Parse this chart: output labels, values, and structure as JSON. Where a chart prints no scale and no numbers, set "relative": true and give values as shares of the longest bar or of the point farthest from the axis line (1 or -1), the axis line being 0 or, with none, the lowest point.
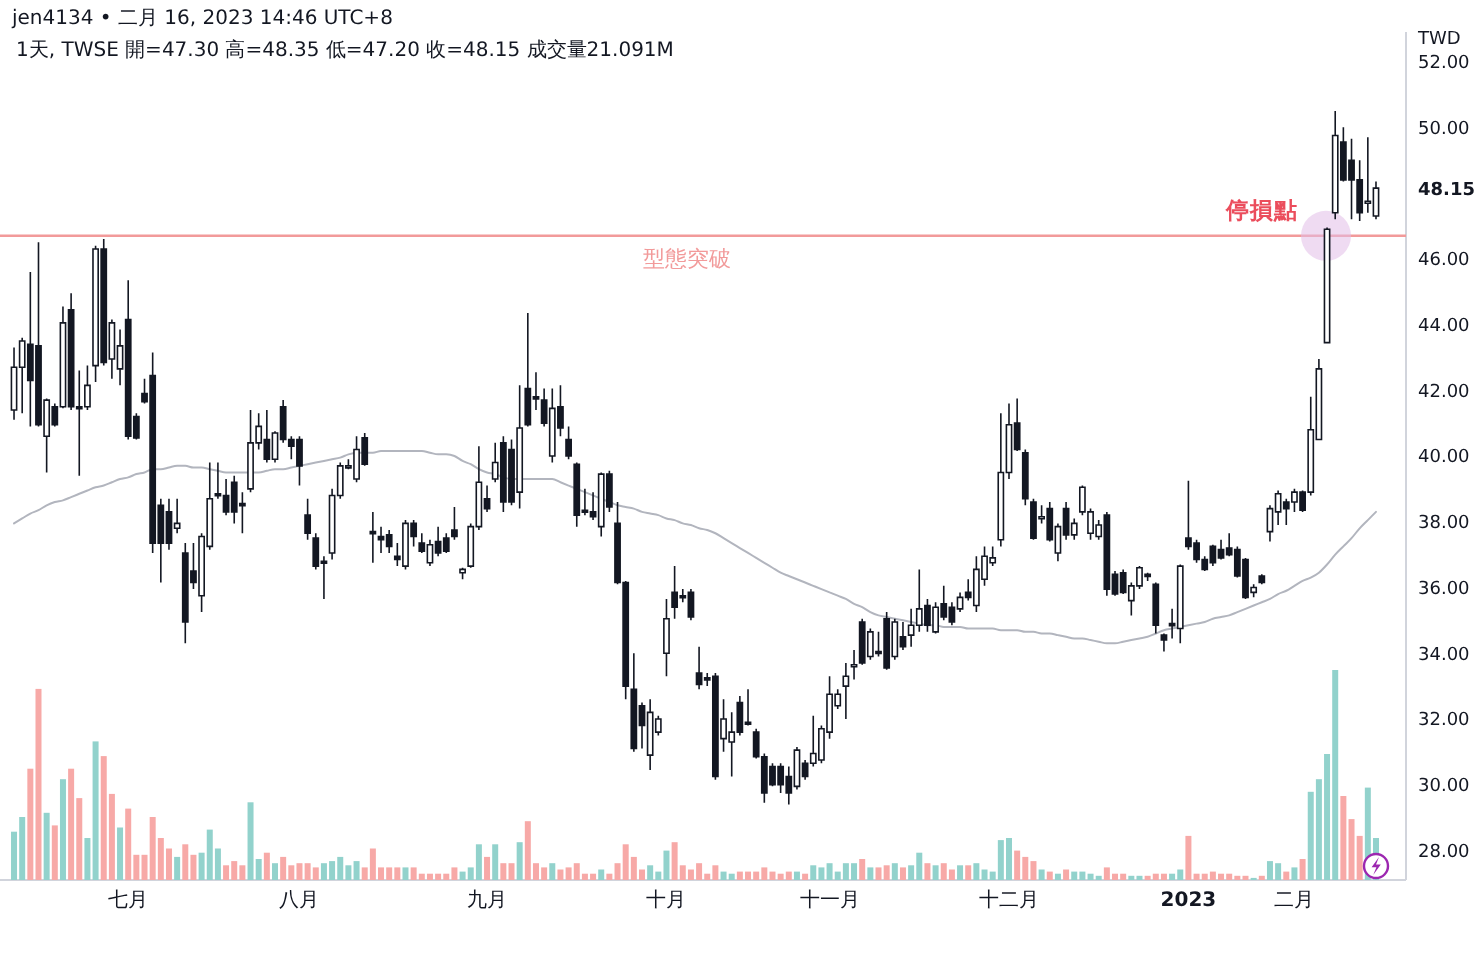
{
  "chart_data": [
    {
      "type": "candlestick",
      "title": "jen4134 • 二月 16, 2023 14:46 UTC+8",
      "subtitle": "1天, TWSE 開=47.30 高=48.35 低=47.20 收=48.15 成交量21.091M",
      "ylabel": "TWD",
      "categories": [
        null,
        null,
        null,
        null,
        null,
        null,
        null,
        null,
        null,
        null,
        null,
        null,
        null,
        null,
        "七月",
        null,
        null,
        null,
        null,
        null,
        null,
        null,
        null,
        null,
        null,
        null,
        null,
        null,
        null,
        null,
        null,
        null,
        null,
        null,
        null,
        "八月",
        null,
        null,
        null,
        null,
        null,
        null,
        null,
        null,
        null,
        null,
        null,
        null,
        null,
        null,
        null,
        null,
        null,
        null,
        null,
        null,
        null,
        null,
        "九月",
        null,
        null,
        null,
        null,
        null,
        null,
        null,
        null,
        null,
        null,
        null,
        null,
        null,
        null,
        null,
        null,
        null,
        null,
        null,
        null,
        null,
        "十月",
        null,
        null,
        null,
        null,
        null,
        null,
        null,
        null,
        null,
        null,
        null,
        null,
        null,
        null,
        null,
        null,
        null,
        null,
        null,
        "十一月",
        null,
        null,
        null,
        null,
        null,
        null,
        null,
        null,
        null,
        null,
        null,
        null,
        null,
        null,
        null,
        null,
        null,
        null,
        null,
        null,
        null,
        "十二月",
        null,
        null,
        null,
        null,
        null,
        null,
        null,
        null,
        null,
        null,
        null,
        null,
        null,
        null,
        null,
        null,
        null,
        null,
        null,
        null,
        null,
        "2023",
        null,
        null,
        null,
        null,
        null,
        null,
        null,
        null,
        null,
        null,
        null,
        null,
        "二月",
        null,
        null,
        null,
        null,
        null,
        null,
        null,
        null,
        null,
        null
      ],
      "ohlc": [
        [
          41.4,
          43.3,
          41.1,
          42.7
        ],
        [
          42.7,
          43.6,
          41.3,
          43.5
        ],
        [
          43.4,
          45.6,
          40.9,
          42.3
        ],
        [
          43.35,
          46.5,
          40.9,
          40.95
        ],
        [
          40.6,
          41.75,
          39.5,
          41.7
        ],
        [
          41.5,
          41.6,
          40.9,
          40.95
        ],
        [
          41.5,
          44.55,
          41.45,
          44.05
        ],
        [
          44.45,
          44.95,
          41.4,
          41.5
        ],
        [
          41.5,
          42.6,
          39.4,
          41.45
        ],
        [
          41.5,
          42.75,
          41.4,
          42.15
        ],
        [
          42.75,
          46.4,
          42.25,
          46.3
        ],
        [
          46.3,
          46.6,
          42.75,
          42.85
        ],
        [
          42.95,
          44.15,
          42.35,
          44.05
        ],
        [
          42.65,
          43.85,
          42.15,
          43.35
        ],
        [
          44.15,
          45.35,
          40.5,
          40.6
        ],
        [
          41.2,
          41.3,
          40.5,
          40.55
        ],
        [
          41.9,
          42.35,
          41.6,
          41.65
        ],
        [
          42.45,
          43.15,
          37.05,
          37.35
        ],
        [
          38.5,
          38.7,
          36.15,
          37.35
        ],
        [
          38.3,
          38.7,
          37.15,
          37.35
        ],
        [
          37.8,
          38.7,
          37.65,
          37.95
        ],
        [
          37.05,
          37.35,
          34.3,
          34.95
        ],
        [
          36.5,
          37.35,
          35.95,
          36.15
        ],
        [
          35.75,
          37.65,
          35.25,
          37.55
        ],
        [
          37.25,
          39.8,
          37.15,
          38.7
        ],
        [
          38.85,
          39.8,
          38.7,
          38.8
        ],
        [
          38.8,
          39.3,
          38.2,
          38.3
        ],
        [
          39.2,
          39.4,
          37.95,
          38.3
        ],
        [
          38.55,
          38.9,
          37.65,
          38.5
        ],
        [
          39.0,
          41.4,
          38.9,
          40.4
        ],
        [
          40.4,
          41.3,
          40.2,
          40.9
        ],
        [
          40.5,
          41.4,
          39.8,
          39.9
        ],
        [
          39.9,
          40.75,
          39.8,
          40.7
        ],
        [
          41.5,
          41.7,
          40.4,
          40.5
        ],
        [
          40.5,
          40.6,
          39.9,
          40.3
        ],
        [
          40.5,
          40.6,
          39.1,
          39.7
        ],
        [
          38.2,
          38.7,
          37.45,
          37.65
        ],
        [
          37.5,
          37.65,
          36.55,
          36.65
        ],
        [
          36.8,
          36.95,
          35.65,
          36.75
        ],
        [
          37.05,
          39.0,
          36.85,
          38.8
        ],
        [
          38.8,
          39.8,
          38.7,
          39.7
        ],
        [
          39.65,
          39.9,
          39.6,
          39.7
        ],
        [
          39.3,
          40.6,
          39.2,
          40.2
        ],
        [
          40.55,
          40.7,
          39.7,
          39.75
        ],
        [
          37.7,
          38.3,
          36.75,
          37.65
        ],
        [
          37.55,
          37.85,
          37.05,
          37.45
        ],
        [
          37.6,
          37.75,
          37.05,
          37.25
        ],
        [
          36.95,
          37.35,
          36.65,
          36.85
        ],
        [
          36.65,
          38.05,
          36.55,
          37.95
        ],
        [
          37.95,
          38.05,
          37.25,
          37.55
        ],
        [
          37.35,
          37.65,
          37.05,
          37.1
        ],
        [
          36.75,
          37.45,
          36.65,
          37.3
        ],
        [
          37.4,
          37.85,
          36.95,
          37.05
        ],
        [
          37.5,
          37.65,
          37.05,
          37.1
        ],
        [
          37.75,
          38.45,
          37.45,
          37.55
        ],
        [
          36.45,
          36.6,
          36.25,
          36.55
        ],
        [
          36.65,
          37.95,
          36.6,
          37.85
        ],
        [
          37.85,
          40.3,
          37.75,
          39.2
        ],
        [
          38.7,
          39.1,
          38.3,
          38.4
        ],
        [
          39.3,
          40.4,
          39.2,
          39.8
        ],
        [
          40.4,
          40.6,
          38.3,
          38.6
        ],
        [
          40.2,
          40.5,
          38.5,
          38.6
        ],
        [
          38.9,
          42.15,
          38.4,
          40.85
        ],
        [
          42.05,
          44.35,
          40.9,
          40.95
        ],
        [
          41.8,
          42.55,
          41.4,
          41.75
        ],
        [
          41.7,
          42.05,
          40.9,
          41.0
        ],
        [
          40.0,
          42.05,
          39.8,
          41.45
        ],
        [
          41.5,
          42.15,
          40.6,
          40.85
        ],
        [
          40.5,
          40.9,
          39.9,
          40.0
        ],
        [
          39.75,
          39.8,
          37.85,
          38.2
        ],
        [
          38.35,
          39.0,
          38.2,
          38.3
        ],
        [
          38.3,
          38.9,
          38.05,
          38.15
        ],
        [
          37.85,
          39.5,
          37.55,
          39.45
        ],
        [
          39.45,
          39.55,
          38.3,
          38.45
        ],
        [
          37.95,
          38.6,
          36.1,
          36.15
        ],
        [
          36.15,
          36.2,
          32.6,
          33.0
        ],
        [
          32.9,
          34.0,
          31.0,
          31.1
        ],
        [
          32.4,
          32.5,
          31.1,
          31.8
        ],
        [
          30.9,
          32.6,
          30.45,
          32.2
        ],
        [
          31.6,
          32.1,
          31.5,
          32.0
        ],
        [
          34.0,
          35.65,
          33.3,
          35.05
        ],
        [
          35.85,
          36.65,
          35.05,
          35.4
        ],
        [
          35.75,
          35.95,
          35.55,
          35.7
        ],
        [
          35.85,
          35.95,
          35.0,
          35.1
        ],
        [
          33.4,
          34.2,
          32.9,
          33.05
        ],
        [
          33.25,
          33.4,
          33.0,
          33.2
        ],
        [
          33.3,
          33.4,
          30.15,
          30.25
        ],
        [
          31.4,
          32.6,
          31.0,
          32.0
        ],
        [
          31.3,
          32.2,
          30.25,
          31.6
        ],
        [
          32.5,
          32.7,
          31.5,
          31.6
        ],
        [
          31.9,
          32.9,
          31.8,
          31.85
        ],
        [
          31.6,
          31.7,
          30.8,
          30.85
        ],
        [
          30.85,
          30.95,
          29.45,
          29.75
        ],
        [
          30.55,
          30.65,
          29.95,
          30.0
        ],
        [
          30.55,
          30.65,
          29.75,
          30.0
        ],
        [
          30.25,
          30.55,
          29.4,
          29.75
        ],
        [
          29.95,
          31.15,
          29.85,
          31.05
        ],
        [
          30.65,
          30.75,
          30.15,
          30.25
        ],
        [
          30.65,
          32.1,
          30.55,
          30.95
        ],
        [
          30.75,
          31.8,
          30.65,
          31.7
        ],
        [
          31.6,
          33.3,
          31.4,
          32.75
        ],
        [
          32.4,
          32.9,
          32.3,
          32.75
        ],
        [
          33.0,
          33.7,
          32.0,
          33.3
        ],
        [
          33.6,
          34.1,
          33.2,
          33.65
        ],
        [
          34.95,
          35.05,
          33.65,
          33.7
        ],
        [
          33.9,
          34.75,
          33.8,
          34.65
        ],
        [
          34.05,
          34.65,
          33.9,
          34.0
        ],
        [
          35.05,
          35.25,
          33.5,
          33.55
        ],
        [
          33.9,
          35.05,
          33.8,
          34.95
        ],
        [
          34.5,
          34.95,
          34.1,
          34.2
        ],
        [
          34.55,
          35.35,
          34.2,
          34.85
        ],
        [
          34.85,
          36.55,
          34.65,
          35.35
        ],
        [
          35.45,
          35.65,
          34.65,
          34.85
        ],
        [
          34.65,
          35.55,
          34.6,
          35.4
        ],
        [
          35.5,
          36.05,
          35.0,
          35.1
        ],
        [
          35.4,
          35.55,
          34.85,
          34.95
        ],
        [
          35.35,
          35.85,
          35.25,
          35.7
        ],
        [
          35.85,
          36.25,
          35.6,
          35.7
        ],
        [
          35.45,
          36.95,
          35.25,
          36.55
        ],
        [
          36.25,
          37.25,
          36.05,
          36.95
        ],
        [
          36.75,
          37.25,
          36.65,
          36.9
        ],
        [
          37.45,
          41.3,
          37.25,
          39.5
        ],
        [
          39.5,
          41.6,
          39.3,
          40.95
        ],
        [
          41.0,
          41.75,
          40.15,
          40.2
        ],
        [
          40.1,
          40.2,
          38.5,
          38.7
        ],
        [
          38.6,
          38.7,
          37.45,
          37.5
        ],
        [
          38.1,
          38.5,
          37.95,
          38.15
        ],
        [
          38.4,
          38.6,
          37.4,
          37.45
        ],
        [
          37.05,
          37.95,
          36.8,
          37.85
        ],
        [
          38.4,
          38.6,
          37.45,
          37.6
        ],
        [
          37.6,
          38.1,
          37.45,
          37.95
        ],
        [
          38.3,
          39.1,
          38.2,
          39.05
        ],
        [
          37.65,
          38.4,
          37.45,
          38.3
        ],
        [
          37.55,
          38.05,
          37.45,
          37.9
        ],
        [
          38.2,
          38.3,
          35.75,
          35.95
        ],
        [
          36.4,
          36.5,
          35.75,
          35.8
        ],
        [
          36.45,
          36.55,
          35.8,
          35.85
        ],
        [
          35.6,
          36.15,
          35.15,
          36.05
        ],
        [
          36.05,
          36.65,
          35.95,
          36.6
        ],
        [
          36.4,
          36.45,
          36.2,
          36.35
        ],
        [
          36.1,
          36.15,
          34.6,
          34.85
        ],
        [
          34.55,
          34.6,
          34.05,
          34.4
        ],
        [
          34.9,
          35.35,
          34.45,
          34.85
        ],
        [
          34.75,
          36.7,
          34.3,
          36.65
        ],
        [
          37.5,
          39.25,
          37.15,
          37.25
        ],
        [
          37.35,
          37.45,
          36.75,
          36.85
        ],
        [
          36.85,
          36.95,
          36.5,
          36.55
        ],
        [
          37.25,
          37.3,
          36.65,
          36.75
        ],
        [
          37.15,
          37.45,
          36.85,
          36.9
        ],
        [
          37.2,
          37.65,
          36.95,
          37.0
        ],
        [
          37.15,
          37.25,
          36.3,
          36.35
        ],
        [
          36.85,
          36.9,
          35.65,
          35.7
        ],
        [
          35.85,
          36.1,
          35.7,
          36.0
        ],
        [
          36.35,
          36.4,
          36.1,
          36.15
        ],
        [
          37.7,
          38.5,
          37.4,
          38.4
        ],
        [
          38.3,
          38.95,
          37.9,
          38.85
        ],
        [
          38.6,
          38.7,
          37.9,
          38.4
        ],
        [
          38.6,
          39.0,
          38.3,
          38.9
        ],
        [
          38.9,
          38.95,
          38.3,
          38.35
        ],
        [
          38.9,
          41.8,
          38.8,
          40.8
        ],
        [
          40.5,
          42.95,
          40.5,
          42.65
        ],
        [
          43.45,
          46.95,
          43.45,
          46.9
        ],
        [
          47.4,
          50.5,
          47.2,
          49.75
        ],
        [
          49.55,
          50.0,
          48.35,
          48.4
        ],
        [
          49.0,
          49.65,
          47.2,
          48.4
        ],
        [
          48.4,
          49.0,
          47.15,
          47.4
        ],
        [
          47.7,
          49.7,
          47.4,
          47.75
        ],
        [
          47.3,
          48.35,
          47.2,
          48.15
        ]
      ],
      "series": [
        {
          "type": "line",
          "color": "#b2b5be",
          "values": [
            37.95,
            38.1,
            38.25,
            38.35,
            38.5,
            38.6,
            38.65,
            38.75,
            38.85,
            38.95,
            39.05,
            39.1,
            39.2,
            39.3,
            39.35,
            39.45,
            39.5,
            39.6,
            39.6,
            39.65,
            39.7,
            39.7,
            39.65,
            39.65,
            39.6,
            39.55,
            39.5,
            39.5,
            39.5,
            39.5,
            39.5,
            39.55,
            39.6,
            39.6,
            39.65,
            39.7,
            39.75,
            39.8,
            39.85,
            39.9,
            39.95,
            40.05,
            40.1,
            40.1,
            40.1,
            40.15,
            40.15,
            40.15,
            40.15,
            40.15,
            40.15,
            40.1,
            40.05,
            40.05,
            40.0,
            39.85,
            39.75,
            39.6,
            39.5,
            39.45,
            39.35,
            39.3,
            39.3,
            39.3,
            39.3,
            39.3,
            39.3,
            39.2,
            39.1,
            39.0,
            38.9,
            38.8,
            38.7,
            38.6,
            38.5,
            38.45,
            38.4,
            38.3,
            38.25,
            38.2,
            38.1,
            38.05,
            37.95,
            37.9,
            37.8,
            37.75,
            37.65,
            37.5,
            37.35,
            37.2,
            37.05,
            36.9,
            36.75,
            36.6,
            36.45,
            36.35,
            36.25,
            36.15,
            36.05,
            35.95,
            35.85,
            35.75,
            35.65,
            35.5,
            35.4,
            35.25,
            35.15,
            35.1,
            35.05,
            35.0,
            34.95,
            34.9,
            34.85,
            34.85,
            34.8,
            34.8,
            34.8,
            34.75,
            34.75,
            34.75,
            34.75,
            34.7,
            34.7,
            34.7,
            34.65,
            34.65,
            34.6,
            34.6,
            34.55,
            34.5,
            34.45,
            34.45,
            34.4,
            34.35,
            34.3,
            34.3,
            34.35,
            34.4,
            34.45,
            34.5,
            34.6,
            34.7,
            34.75,
            34.8,
            34.85,
            34.9,
            34.95,
            35.05,
            35.1,
            35.15,
            35.25,
            35.35,
            35.45,
            35.55,
            35.65,
            35.8,
            35.9,
            36.05,
            36.2,
            36.3,
            36.45,
            36.7,
            37.0,
            37.25,
            37.5,
            37.8,
            38.05,
            38.3
          ]
        }
      ],
      "ylim": [
        27.1,
        52.9
      ],
      "yticks": [
        {
          "value": 28,
          "label": "28.00"
        },
        {
          "value": 30,
          "label": "30.00"
        },
        {
          "value": 32,
          "label": "32.00"
        },
        {
          "value": 34,
          "label": "34.00"
        },
        {
          "value": 36,
          "label": "36.00"
        },
        {
          "value": 38,
          "label": "38.00"
        },
        {
          "value": 40,
          "label": "40.00"
        },
        {
          "value": 42,
          "label": "42.00"
        },
        {
          "value": 44,
          "label": "44.00"
        },
        {
          "value": 46,
          "label": "46.00"
        },
        48.15,
        {
          "value": 50,
          "label": "50.00"
        },
        {
          "value": 52,
          "label": "52.00"
        }
      ],
      "ref_lines": [
        {
          "axis": "y",
          "value": 46.7,
          "label": "型態突破",
          "color": "#f29a9a"
        }
      ],
      "annotations": [
        "停損點"
      ]
    },
    {
      "type": "bar",
      "relative": true,
      "categories": [
        null,
        null,
        null,
        null,
        null,
        null,
        null,
        null,
        null,
        null,
        null,
        null,
        null,
        null,
        null,
        null,
        null,
        null,
        null,
        null,
        null,
        null,
        null,
        null,
        null,
        null,
        null,
        null,
        null,
        null,
        null,
        null,
        null,
        null,
        null,
        null,
        null,
        null,
        null,
        null,
        null,
        null,
        null,
        null,
        null,
        null,
        null,
        null,
        null,
        null,
        null,
        null,
        null,
        null,
        null,
        null,
        null,
        null,
        null,
        null,
        null,
        null,
        null,
        null,
        null,
        null,
        null,
        null,
        null,
        null,
        null,
        null,
        null,
        null,
        null,
        null,
        null,
        null,
        null,
        null,
        null,
        null,
        null,
        null,
        null,
        null,
        null,
        null,
        null,
        null,
        null,
        null,
        null,
        null,
        null,
        null,
        null,
        null,
        null,
        null,
        null,
        null,
        null,
        null,
        null,
        null,
        null,
        null,
        null,
        null,
        null,
        null,
        null,
        null,
        null,
        null,
        null,
        null,
        null,
        null,
        null,
        null,
        null,
        null,
        null,
        null,
        null,
        null,
        null,
        null,
        null,
        null,
        null,
        null,
        null,
        null,
        null,
        null,
        null,
        null,
        null,
        null,
        null,
        null,
        null,
        null,
        null,
        null,
        null,
        null,
        null,
        null,
        null,
        null,
        null,
        null,
        null,
        null,
        null,
        null,
        null,
        null,
        null,
        null,
        null,
        null,
        null,
        null
      ],
      "values": [
        0.23,
        0.3,
        0.53,
        0.91,
        0.32,
        0.26,
        0.48,
        0.53,
        0.39,
        0.2,
        0.66,
        0.59,
        0.41,
        0.25,
        0.34,
        0.12,
        0.12,
        0.3,
        0.2,
        0.15,
        0.11,
        0.17,
        0.12,
        0.13,
        0.24,
        0.15,
        0.07,
        0.09,
        0.07,
        0.37,
        0.1,
        0.13,
        0.08,
        0.11,
        0.07,
        0.08,
        0.08,
        0.06,
        0.08,
        0.09,
        0.11,
        0.07,
        0.09,
        0.06,
        0.15,
        0.06,
        0.06,
        0.06,
        0.06,
        0.06,
        0.03,
        0.03,
        0.03,
        0.03,
        0.06,
        0.04,
        0.06,
        0.17,
        0.11,
        0.17,
        0.08,
        0.08,
        0.18,
        0.28,
        0.08,
        0.06,
        0.08,
        0.05,
        0.06,
        0.08,
        0.03,
        0.03,
        0.05,
        0.03,
        0.08,
        0.17,
        0.11,
        0.05,
        0.07,
        0.04,
        0.14,
        0.18,
        0.07,
        0.05,
        0.08,
        0.03,
        0.07,
        0.04,
        0.03,
        0.04,
        0.04,
        0.04,
        0.06,
        0.04,
        0.03,
        0.04,
        0.04,
        0.03,
        0.07,
        0.06,
        0.08,
        0.04,
        0.08,
        0.08,
        0.1,
        0.06,
        0.06,
        0.07,
        0.08,
        0.06,
        0.07,
        0.13,
        0.08,
        0.07,
        0.08,
        0.05,
        0.07,
        0.07,
        0.08,
        0.05,
        0.04,
        0.19,
        0.2,
        0.14,
        0.11,
        0.09,
        0.05,
        0.04,
        0.03,
        0.05,
        0.04,
        0.04,
        0.03,
        0.02,
        0.06,
        0.03,
        0.03,
        0.02,
        0.02,
        0.02,
        0.03,
        0.03,
        0.03,
        0.05,
        0.21,
        0.03,
        0.03,
        0.04,
        0.03,
        0.03,
        0.02,
        0.02,
        0.01,
        0.02,
        0.09,
        0.08,
        0.04,
        0.06,
        0.1,
        0.42,
        0.48,
        0.6,
        1,
        0.4,
        0.29,
        0.21,
        0.44,
        0.2
      ],
      "colors": [
        "#92d2cc",
        "#92d2cc",
        "#f7a9a7",
        "#f7a9a7",
        "#92d2cc",
        "#f7a9a7",
        "#92d2cc",
        "#f7a9a7",
        "#f7a9a7",
        "#92d2cc",
        "#92d2cc",
        "#f7a9a7",
        "#f7a9a7",
        "#92d2cc",
        "#f7a9a7",
        "#f7a9a7",
        "#f7a9a7",
        "#f7a9a7",
        "#f7a9a7",
        "#f7a9a7",
        "#92d2cc",
        "#f7a9a7",
        "#f7a9a7",
        "#92d2cc",
        "#92d2cc",
        "#92d2cc",
        "#f7a9a7",
        "#f7a9a7",
        "#f7a9a7",
        "#92d2cc",
        "#92d2cc",
        "#f7a9a7",
        "#92d2cc",
        "#f7a9a7",
        "#f7a9a7",
        "#f7a9a7",
        "#f7a9a7",
        "#f7a9a7",
        "#92d2cc",
        "#92d2cc",
        "#92d2cc",
        "#92d2cc",
        "#92d2cc",
        "#f7a9a7",
        "#f7a9a7",
        "#f7a9a7",
        "#f7a9a7",
        "#f7a9a7",
        "#92d2cc",
        "#f7a9a7",
        "#f7a9a7",
        "#f7a9a7",
        "#f7a9a7",
        "#f7a9a7",
        "#f7a9a7",
        "#92d2cc",
        "#92d2cc",
        "#92d2cc",
        "#f7a9a7",
        "#92d2cc",
        "#f7a9a7",
        "#f7a9a7",
        "#92d2cc",
        "#f7a9a7",
        "#f7a9a7",
        "#f7a9a7",
        "#92d2cc",
        "#f7a9a7",
        "#f7a9a7",
        "#f7a9a7",
        "#f7a9a7",
        "#f7a9a7",
        "#92d2cc",
        "#f7a9a7",
        "#f7a9a7",
        "#f7a9a7",
        "#f7a9a7",
        "#f7a9a7",
        "#92d2cc",
        "#92d2cc",
        "#92d2cc",
        "#f7a9a7",
        "#f7a9a7",
        "#f7a9a7",
        "#f7a9a7",
        "#f7a9a7",
        "#f7a9a7",
        "#92d2cc",
        "#92d2cc",
        "#f7a9a7",
        "#f7a9a7",
        "#f7a9a7",
        "#f7a9a7",
        "#f7a9a7",
        "#f7a9a7",
        "#f7a9a7",
        "#92d2cc",
        "#f7a9a7",
        "#92d2cc",
        "#92d2cc",
        "#92d2cc",
        "#92d2cc",
        "#92d2cc",
        "#92d2cc",
        "#f7a9a7",
        "#92d2cc",
        "#f7a9a7",
        "#f7a9a7",
        "#92d2cc",
        "#f7a9a7",
        "#92d2cc",
        "#92d2cc",
        "#f7a9a7",
        "#92d2cc",
        "#f7a9a7",
        "#f7a9a7",
        "#92d2cc",
        "#f7a9a7",
        "#92d2cc",
        "#92d2cc",
        "#92d2cc",
        "#92d2cc",
        "#92d2cc",
        "#f7a9a7",
        "#f7a9a7",
        "#f7a9a7",
        "#92d2cc",
        "#f7a9a7",
        "#92d2cc",
        "#f7a9a7",
        "#92d2cc",
        "#92d2cc",
        "#92d2cc",
        "#92d2cc",
        "#f7a9a7",
        "#f7a9a7",
        "#f7a9a7",
        "#92d2cc",
        "#92d2cc",
        "#f7a9a7",
        "#f7a9a7",
        "#f7a9a7",
        "#92d2cc",
        "#92d2cc",
        "#f7a9a7",
        "#f7a9a7",
        "#f7a9a7",
        "#f7a9a7",
        "#f7a9a7",
        "#f7a9a7",
        "#f7a9a7",
        "#f7a9a7",
        "#92d2cc",
        "#f7a9a7",
        "#92d2cc",
        "#92d2cc",
        "#f7a9a7",
        "#92d2cc",
        "#f7a9a7",
        "#92d2cc",
        "#92d2cc",
        "#92d2cc",
        "#92d2cc",
        "#f7a9a7",
        "#f7a9a7",
        "#f7a9a7",
        "#92d2cc",
        "#92d2cc"
      ]
    }
  ]
}
